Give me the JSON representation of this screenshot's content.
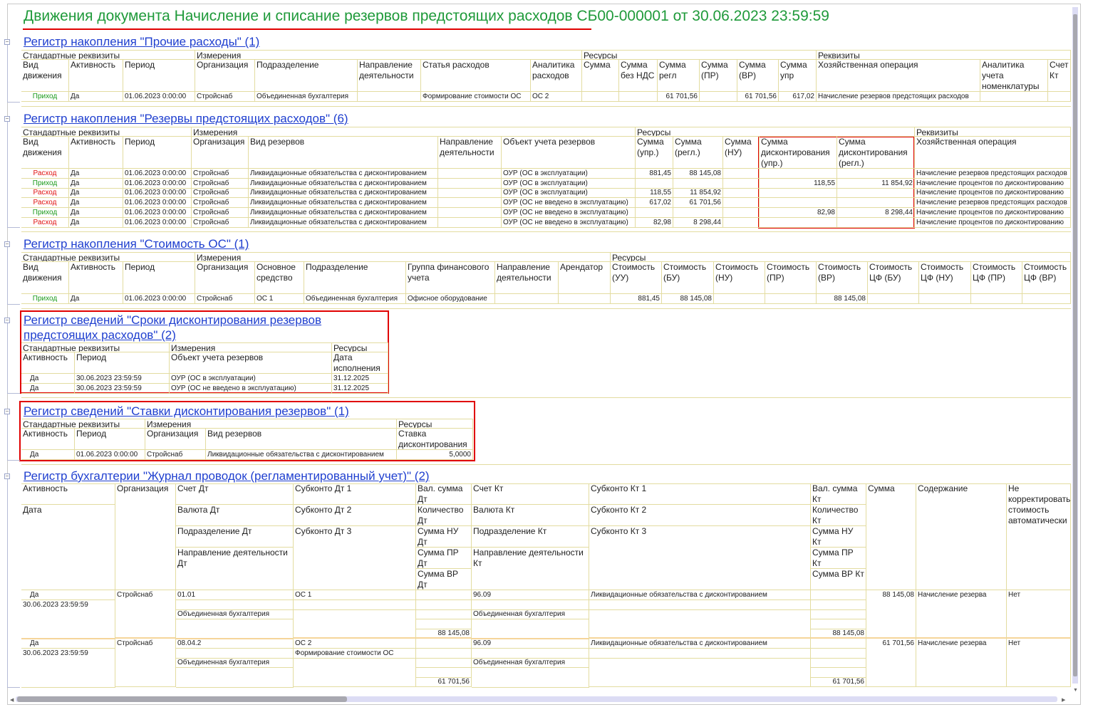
{
  "title": "Движения документа Начисление и списание резервов предстоящих расходов СБ00-000001 от 30.06.2023 23:59:59",
  "colors": {
    "title": "#1f9a3a",
    "link": "#1f3fcf",
    "income": "#1a9a1a",
    "expense": "#e01010",
    "highlight_box": "#e00000",
    "grid": "#e3dca0"
  },
  "icons": {
    "collapse": "minus-box-icon"
  },
  "s1": {
    "title": "Регистр накопления \"Прочие расходы\" (1)",
    "groups": [
      "Стандартные реквизиты",
      "Измерения",
      "Ресурсы",
      "Реквизиты"
    ],
    "columns": [
      "Вид движения",
      "Активность",
      "Период",
      "Организация",
      "Подразделение",
      "Направление деятельности",
      "Статья расходов",
      "Аналитика расходов",
      "Сумма",
      "Сумма без НДС",
      "Сумма регл",
      "Сумма (ПР)",
      "Сумма (ВР)",
      "Сумма упр",
      "Хозяйственная операция",
      "Аналитика учета номенклатуры",
      "Счет Кт"
    ],
    "rows": [
      [
        "Приход",
        "Да",
        "01.06.2023 0:00:00",
        "Стройснаб",
        "Объединенная бухгалтерия",
        "",
        "Формирование стоимости ОС",
        "ОС 2",
        "",
        "",
        "61 701,56",
        "",
        "61 701,56",
        "617,02",
        "Начисление резервов предстоящих расходов",
        "",
        ""
      ]
    ]
  },
  "s2": {
    "title": "Регистр накопления \"Резервы предстоящих расходов\" (6)",
    "groups": [
      "Стандартные реквизиты",
      "Измерения",
      "Ресурсы",
      "Реквизиты"
    ],
    "columns": [
      "Вид движения",
      "Активность",
      "Период",
      "Организация",
      "Вид резервов",
      "Направление деятельности",
      "Объект учета резервов",
      "Сумма (упр.)",
      "Сумма (регл.)",
      "Сумма (НУ)",
      "Сумма дисконтирования (упр.)",
      "Сумма дисконтирования (регл.)",
      "Хозяйственная операция"
    ],
    "rows": [
      [
        "Расход",
        "Да",
        "01.06.2023 0:00:00",
        "Стройснаб",
        "Ликвидационные обязательства с дисконтированием",
        "",
        "ОУР (ОС в эксплуатации)",
        "881,45",
        "88 145,08",
        "",
        "",
        "",
        "Начисление резервов предстоящих расходов"
      ],
      [
        "Приход",
        "Да",
        "01.06.2023 0:00:00",
        "Стройснаб",
        "Ликвидационные обязательства с дисконтированием",
        "",
        "ОУР (ОС в эксплуатации)",
        "",
        "",
        "",
        "118,55",
        "11 854,92",
        "Начисление процентов по дисконтированию"
      ],
      [
        "Расход",
        "Да",
        "01.06.2023 0:00:00",
        "Стройснаб",
        "Ликвидационные обязательства с дисконтированием",
        "",
        "ОУР (ОС в эксплуатации)",
        "118,55",
        "11 854,92",
        "",
        "",
        "",
        "Начисление процентов по дисконтированию"
      ],
      [
        "Расход",
        "Да",
        "01.06.2023 0:00:00",
        "Стройснаб",
        "Ликвидационные обязательства с дисконтированием",
        "",
        "ОУР (ОС не введено в эксплуатацию)",
        "617,02",
        "61 701,56",
        "",
        "",
        "",
        "Начисление резервов предстоящих расходов"
      ],
      [
        "Приход",
        "Да",
        "01.06.2023 0:00:00",
        "Стройснаб",
        "Ликвидационные обязательства с дисконтированием",
        "",
        "ОУР (ОС не введено в эксплуатацию)",
        "",
        "",
        "",
        "82,98",
        "8 298,44",
        "Начисление процентов по дисконтированию"
      ],
      [
        "Расход",
        "Да",
        "01.06.2023 0:00:00",
        "Стройснаб",
        "Ликвидационные обязательства с дисконтированием",
        "",
        "ОУР (ОС не введено в эксплуатацию)",
        "82,98",
        "8 298,44",
        "",
        "",
        "",
        "Начисление процентов по дисконтированию"
      ]
    ]
  },
  "s3": {
    "title": "Регистр накопления \"Стоимость ОС\" (1)",
    "groups": [
      "Стандартные реквизиты",
      "Измерения",
      "Ресурсы"
    ],
    "columns": [
      "Вид движения",
      "Активность",
      "Период",
      "Организация",
      "Основное средство",
      "Подразделение",
      "Группа финансового учета",
      "Направление деятельности",
      "Арендатор",
      "Стоимость (УУ)",
      "Стоимость (БУ)",
      "Стоимость (НУ)",
      "Стоимость (ПР)",
      "Стоимость (ВР)",
      "Стоимость ЦФ (БУ)",
      "Стоимость ЦФ (НУ)",
      "Стоимость ЦФ (ПР)",
      "Стоимость ЦФ (ВР)"
    ],
    "rows": [
      [
        "Приход",
        "Да",
        "01.06.2023 0:00:00",
        "Стройснаб",
        "ОС 1",
        "Объединенная бухгалтерия",
        "Офисное оборудование",
        "",
        "",
        "881,45",
        "88 145,08",
        "",
        "",
        "88 145,08",
        "",
        "",
        "",
        ""
      ]
    ]
  },
  "s4": {
    "title": "Регистр сведений \"Сроки дисконтирования резервов предстоящих расходов\" (2)",
    "groups": [
      "Стандартные реквизиты",
      "Измерения",
      "Ресурсы"
    ],
    "columns": [
      "Активность",
      "Период",
      "Объект учета резервов",
      "Дата исполнения"
    ],
    "rows": [
      [
        "Да",
        "30.06.2023 23:59:59",
        "ОУР (ОС в эксплуатации)",
        "31.12.2025"
      ],
      [
        "Да",
        "30.06.2023 23:59:59",
        "ОУР (ОС не введено в эксплуатацию)",
        "31.12.2025"
      ]
    ]
  },
  "s5": {
    "title": "Регистр сведений \"Ставки дисконтирования резервов\" (1)",
    "groups": [
      "Стандартные реквизиты",
      "Измерения",
      "Ресурсы"
    ],
    "columns": [
      "Активность",
      "Период",
      "Организация",
      "Вид резервов",
      "Ставка дисконтирования"
    ],
    "rows": [
      [
        "Да",
        "01.06.2023 0:00:00",
        "Стройснаб",
        "Ликвидационные обязательства с дисконтированием",
        "5,0000"
      ]
    ]
  },
  "s6": {
    "title": "Регистр бухгалтерии \"Журнал проводок (регламентированный учет)\" (2)",
    "headers": {
      "activity": "Активность",
      "date": "Дата",
      "org": "Организация",
      "acc_dt": "Счет Дт",
      "cur_dt": "Валюта Дт",
      "dept_dt": "Подразделение Дт",
      "dir_dt": "Направление деятельности Дт",
      "sub_dt1": "Субконто Дт 1",
      "sub_dt2": "Субконто Дт 2",
      "sub_dt3": "Субконто Дт 3",
      "val_dt": "Вал. сумма Дт",
      "qty_dt": "Количество Дт",
      "nu_dt": "Сумма НУ Дт",
      "pr_dt": "Сумма ПР Дт",
      "vr_dt": "Сумма ВР Дт",
      "acc_kt": "Счет Кт",
      "cur_kt": "Валюта Кт",
      "dept_kt": "Подразделение Кт",
      "dir_kt": "Направление деятельности Кт",
      "sub_kt1": "Субконто Кт 1",
      "sub_kt2": "Субконто Кт 2",
      "sub_kt3": "Субконто Кт 3",
      "val_kt": "Вал. сумма Кт",
      "qty_kt": "Количество Кт",
      "nu_kt": "Сумма НУ Кт",
      "pr_kt": "Сумма ПР Кт",
      "vr_kt": "Сумма ВР Кт",
      "sum": "Сумма",
      "content": "Содержание",
      "no_adjust": "Не корректировать стоимость автоматически"
    },
    "rows": [
      {
        "activity": "Да",
        "date": "30.06.2023 23:59:59",
        "org": "Стройснаб",
        "acc_dt": "01.01",
        "cur_dt": "",
        "dept_dt": "Объединенная бухгалтерия",
        "dir_dt": "",
        "sub_dt1": "ОС 1",
        "sub_dt2": "",
        "sub_dt3": "",
        "val_dt": "",
        "qty_dt": "",
        "nu_dt": "",
        "pr_dt": "",
        "vr_dt": "88 145,08",
        "acc_kt": "96.09",
        "cur_kt": "",
        "dept_kt": "Объединенная бухгалтерия",
        "dir_kt": "",
        "sub_kt1": "Ликвидационные обязательства с дисконтированием",
        "sub_kt2": "",
        "sub_kt3": "",
        "val_kt": "",
        "qty_kt": "",
        "nu_kt": "",
        "pr_kt": "",
        "vr_kt": "88 145,08",
        "sum": "88 145,08",
        "content": "Начисление резерва",
        "no_adjust": "Нет"
      },
      {
        "activity": "Да",
        "date": "30.06.2023 23:59:59",
        "org": "Стройснаб",
        "acc_dt": "08.04.2",
        "cur_dt": "",
        "dept_dt": "Объединенная бухгалтерия",
        "dir_dt": "",
        "sub_dt1": "ОС 2",
        "sub_dt2": "Формирование стоимости ОС",
        "sub_dt3": "",
        "val_dt": "",
        "qty_dt": "",
        "nu_dt": "",
        "pr_dt": "",
        "vr_dt": "61 701,56",
        "acc_kt": "96.09",
        "cur_kt": "",
        "dept_kt": "Объединенная бухгалтерия",
        "dir_kt": "",
        "sub_kt1": "Ликвидационные обязательства с дисконтированием",
        "sub_kt2": "",
        "sub_kt3": "",
        "val_kt": "",
        "qty_kt": "",
        "nu_kt": "",
        "pr_kt": "",
        "vr_kt": "61 701,56",
        "sum": "61 701,56",
        "content": "Начисление резерва",
        "no_adjust": "Нет"
      }
    ]
  }
}
